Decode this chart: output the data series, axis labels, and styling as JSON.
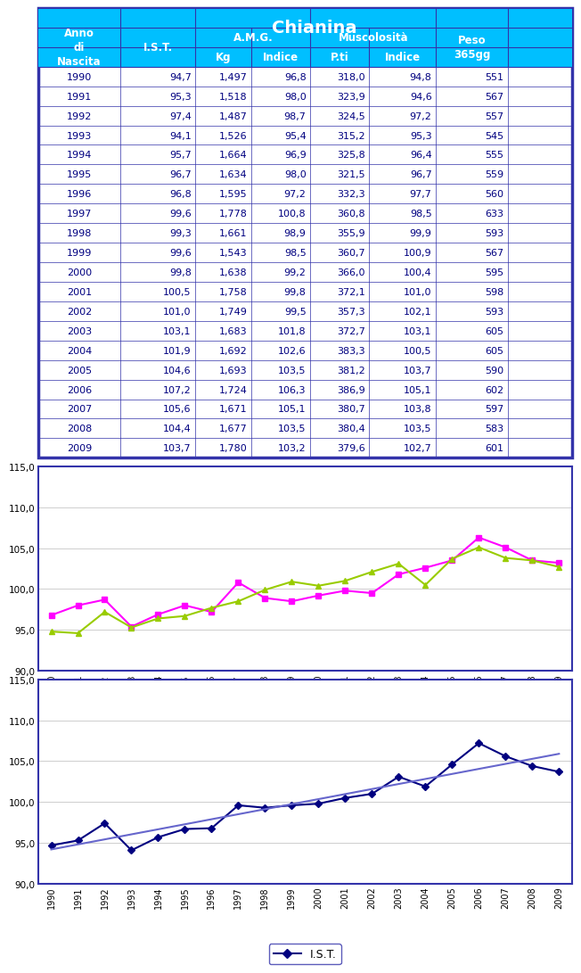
{
  "years": [
    1990,
    1991,
    1992,
    1993,
    1994,
    1995,
    1996,
    1997,
    1998,
    1999,
    2000,
    2001,
    2002,
    2003,
    2004,
    2005,
    2006,
    2007,
    2008,
    2009
  ],
  "IST": [
    94.7,
    95.3,
    97.4,
    94.1,
    95.7,
    96.7,
    96.8,
    99.6,
    99.3,
    99.6,
    99.8,
    100.5,
    101.0,
    103.1,
    101.9,
    104.6,
    107.2,
    105.6,
    104.4,
    103.7
  ],
  "AMG_kg": [
    1.497,
    1.518,
    1.487,
    1.526,
    1.664,
    1.634,
    1.595,
    1.778,
    1.661,
    1.543,
    1.638,
    1.758,
    1.749,
    1.683,
    1.692,
    1.693,
    1.724,
    1.671,
    1.677,
    1.78
  ],
  "AMG_indice": [
    96.8,
    98.0,
    98.7,
    95.4,
    96.9,
    98.0,
    97.2,
    100.8,
    98.9,
    98.5,
    99.2,
    99.8,
    99.5,
    101.8,
    102.6,
    103.5,
    106.3,
    105.1,
    103.5,
    103.2
  ],
  "Musc_pti": [
    318.0,
    323.9,
    324.5,
    315.2,
    325.8,
    321.5,
    332.3,
    360.8,
    355.9,
    360.7,
    366.0,
    372.1,
    357.3,
    372.7,
    383.3,
    381.2,
    386.9,
    380.7,
    380.4,
    379.6
  ],
  "Musc_indice": [
    94.8,
    94.6,
    97.2,
    95.3,
    96.4,
    96.7,
    97.7,
    98.5,
    99.9,
    100.9,
    100.4,
    101.0,
    102.1,
    103.1,
    100.5,
    103.7,
    105.1,
    103.8,
    103.5,
    102.7
  ],
  "Peso_365gg": [
    551,
    567,
    557,
    545,
    555,
    559,
    560,
    633,
    593,
    567,
    595,
    598,
    593,
    605,
    605,
    590,
    602,
    597,
    583,
    601
  ],
  "table_header_bg": "#00BFFF",
  "table_border_color": "#3333AA",
  "table_header_text_color": "#FFFFFF",
  "table_data_text_color": "#000080",
  "chart1_border": "#3333AA",
  "chart1_line1_color": "#FF00FF",
  "chart1_line2_color": "#99CC00",
  "chart2_line_color": "#000080",
  "chart2_trend_color": "#6666CC",
  "ylim_charts": [
    90.0,
    115.0
  ],
  "yticks_charts": [
    90.0,
    95.0,
    100.0,
    105.0,
    110.0,
    115.0
  ]
}
